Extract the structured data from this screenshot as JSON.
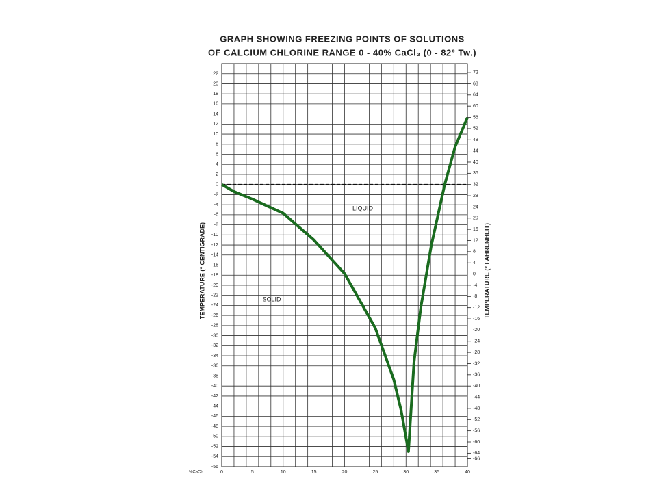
{
  "chart_data": {
    "type": "line",
    "title_lines": [
      "GRAPH SHOWING FREEZING POINTS OF SOLUTIONS",
      "OF CALCIUM CHLORINE RANGE 0 - 40% CaCl₂ (0 - 82° Tw.)"
    ],
    "ylabel": "TEMPERATURE (° CENTIGRADE)",
    "y2label": "TEMPERATURE (° FAHRENHEIT)",
    "xlabel": "%CaCl₂",
    "annotations": [
      "LIQUID",
      "SOLID"
    ],
    "xlim": [
      0,
      40
    ],
    "xticks": [
      0,
      5,
      10,
      15,
      20,
      25,
      30,
      35,
      40
    ],
    "xgrid": [
      0,
      2,
      4,
      6,
      8,
      10,
      12,
      14,
      16,
      18,
      20,
      22,
      24,
      26,
      28,
      30,
      32,
      34,
      36,
      38,
      40
    ],
    "ylim": [
      -56,
      24
    ],
    "yticks": [
      -56,
      -54,
      -52,
      -50,
      -48,
      -46,
      -44,
      -42,
      -40,
      -38,
      -36,
      -34,
      -32,
      -30,
      -28,
      -26,
      -24,
      -22,
      -20,
      -18,
      -16,
      -14,
      -12,
      -10,
      -8,
      -6,
      -4,
      -2,
      0,
      2,
      4,
      6,
      8,
      10,
      12,
      14,
      16,
      18,
      20,
      22
    ],
    "y2lim": [
      -68.8,
      75.2
    ],
    "y2ticks": [
      -66,
      -64,
      -60,
      -56,
      -52,
      -48,
      -44,
      -40,
      -36,
      -32,
      -28,
      -24,
      -20,
      -16,
      -12,
      -8,
      -4,
      0,
      4,
      8,
      12,
      16,
      20,
      24,
      28,
      32,
      36,
      40,
      44,
      48,
      52,
      56,
      60,
      64,
      68,
      72
    ],
    "hline": 0,
    "grid": true,
    "series": [
      {
        "color": "#1a6b1f",
        "x": [
          0,
          2,
          5,
          10,
          15,
          20,
          25,
          28,
          29.2,
          30.4,
          31.3,
          32.4,
          34.1,
          36.3,
          38,
          40
        ],
        "values": [
          0,
          -1.4,
          -2.9,
          -5.7,
          -11,
          -17.7,
          -28.5,
          -38.7,
          -44.8,
          -53,
          -35.3,
          -24.5,
          -12.2,
          0,
          7.5,
          13.3
        ]
      }
    ]
  }
}
